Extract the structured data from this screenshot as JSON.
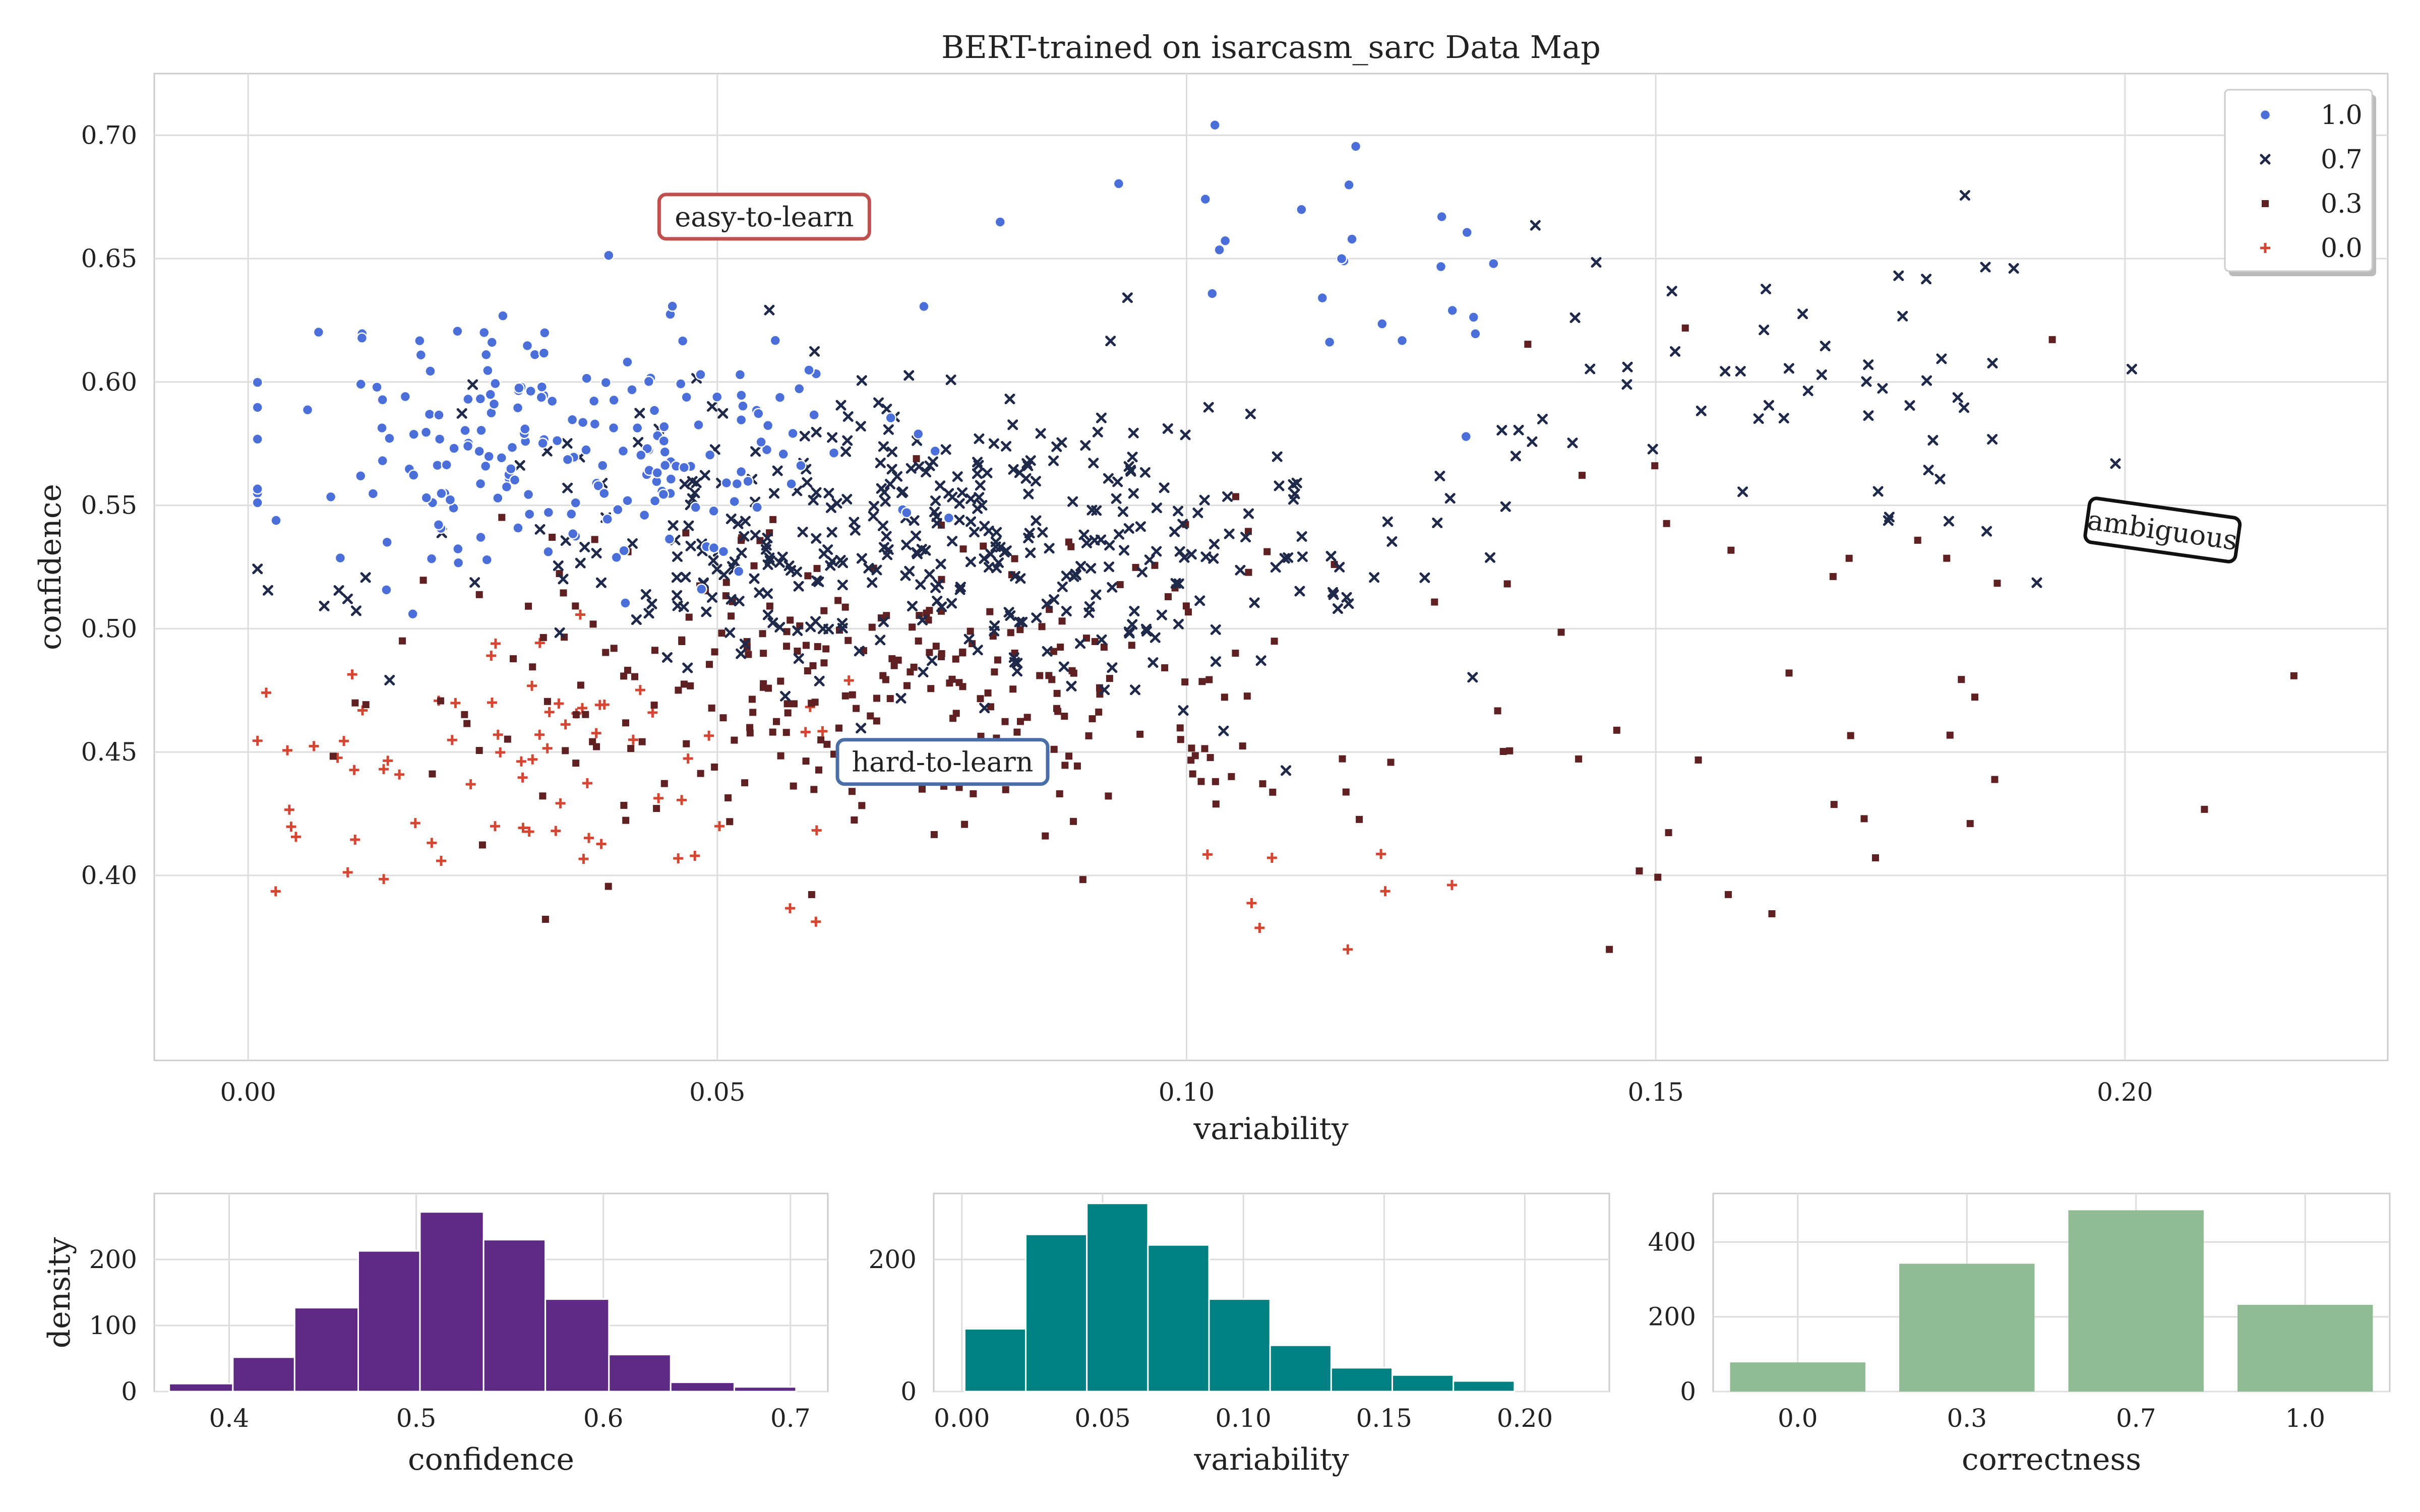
{
  "chart_data": [
    {
      "id": "scatter",
      "type": "scatter",
      "title": "BERT-trained on isarcasm_sarc Data Map",
      "xlabel": "variability",
      "ylabel": "confidence",
      "xlim": [
        -0.01,
        0.228
      ],
      "ylim": [
        0.325,
        0.725
      ],
      "xticks": [
        "0.00",
        "0.05",
        "0.10",
        "0.15",
        "0.20"
      ],
      "xtick_values": [
        0.0,
        0.05,
        0.1,
        0.15,
        0.2
      ],
      "yticks": [
        "0.40",
        "0.45",
        "0.50",
        "0.55",
        "0.60",
        "0.65",
        "0.70"
      ],
      "ytick_values": [
        0.4,
        0.45,
        0.5,
        0.55,
        0.6,
        0.65,
        0.7
      ],
      "grid": true,
      "legend_position": "top-right",
      "series": [
        {
          "name": "1.0",
          "marker": "circle",
          "color": "#4a6fd8",
          "clusters": [
            {
              "cx": 0.035,
              "cy": 0.575,
              "sx": 0.016,
              "sy": 0.028,
              "n": 210,
              "seed": 11
            },
            {
              "cx": 0.12,
              "cy": 0.655,
              "sx": 0.015,
              "sy": 0.025,
              "n": 25,
              "seed": 12
            }
          ]
        },
        {
          "name": "0.7",
          "marker": "x",
          "color": "#1f2a4a",
          "clusters": [
            {
              "cx": 0.075,
              "cy": 0.535,
              "sx": 0.025,
              "sy": 0.03,
              "n": 420,
              "seed": 21
            },
            {
              "cx": 0.165,
              "cy": 0.6,
              "sx": 0.016,
              "sy": 0.03,
              "n": 55,
              "seed": 22
            }
          ]
        },
        {
          "name": "0.3",
          "marker": "square",
          "color": "#5e2020",
          "clusters": [
            {
              "cx": 0.065,
              "cy": 0.475,
              "sx": 0.025,
              "sy": 0.032,
              "n": 300,
              "seed": 31
            },
            {
              "cx": 0.16,
              "cy": 0.5,
              "sx": 0.03,
              "sy": 0.06,
              "n": 40,
              "seed": 32
            }
          ]
        },
        {
          "name": "0.0",
          "marker": "plus",
          "color": "#d64532",
          "clusters": [
            {
              "cx": 0.035,
              "cy": 0.445,
              "sx": 0.02,
              "sy": 0.025,
              "n": 75,
              "seed": 41
            },
            {
              "cx": 0.1,
              "cy": 0.39,
              "sx": 0.015,
              "sy": 0.02,
              "n": 8,
              "seed": 42
            }
          ]
        }
      ],
      "annotations": [
        {
          "text": "easy-to-learn",
          "x": 0.055,
          "y": 0.667,
          "edgecolor": "#c0504d",
          "rotation": 0
        },
        {
          "text": "hard-to-learn",
          "x": 0.074,
          "y": 0.446,
          "edgecolor": "#4a6fa8",
          "rotation": 0
        },
        {
          "text": "ambiguous",
          "x": 0.204,
          "y": 0.54,
          "edgecolor": "#111111",
          "rotation": 8
        }
      ]
    },
    {
      "id": "hist_confidence",
      "type": "bar",
      "xlabel": "confidence",
      "ylabel": "density",
      "xlim": [
        0.36,
        0.72
      ],
      "ylim": [
        0,
        300
      ],
      "xticks": [
        "0.4",
        "0.5",
        "0.6",
        "0.7"
      ],
      "xtick_values": [
        0.4,
        0.5,
        0.6,
        0.7
      ],
      "yticks": [
        "0",
        "100",
        "200"
      ],
      "ytick_values": [
        0,
        100,
        200
      ],
      "color": "#5e2a84",
      "bin_edges": [
        0.368,
        0.402,
        0.435,
        0.469,
        0.502,
        0.536,
        0.569,
        0.603,
        0.636,
        0.67,
        0.703
      ],
      "values": [
        12,
        52,
        127,
        213,
        272,
        230,
        140,
        56,
        14,
        7
      ]
    },
    {
      "id": "hist_variability",
      "type": "bar",
      "xlabel": "variability",
      "ylabel": "",
      "xlim": [
        -0.01,
        0.23
      ],
      "ylim": [
        0,
        300
      ],
      "xticks": [
        "0.00",
        "0.05",
        "0.10",
        "0.15",
        "0.20"
      ],
      "xtick_values": [
        0.0,
        0.05,
        0.1,
        0.15,
        0.2
      ],
      "yticks": [
        "0",
        "200"
      ],
      "ytick_values": [
        0,
        200
      ],
      "color": "#008080",
      "bin_edges": [
        0.001,
        0.0227,
        0.0444,
        0.0661,
        0.0878,
        0.1095,
        0.1312,
        0.1529,
        0.1746,
        0.1963
      ],
      "values": [
        95,
        238,
        285,
        222,
        140,
        70,
        36,
        25,
        16
      ]
    },
    {
      "id": "bar_correctness",
      "type": "bar",
      "xlabel": "correctness",
      "ylabel": "",
      "ylim": [
        0,
        530
      ],
      "categories": [
        "0.0",
        "0.3",
        "0.7",
        "1.0"
      ],
      "yticks": [
        "0",
        "200",
        "400"
      ],
      "ytick_values": [
        0,
        200,
        400
      ],
      "color": "#8fbc94",
      "values": [
        78,
        342,
        485,
        232
      ]
    }
  ]
}
